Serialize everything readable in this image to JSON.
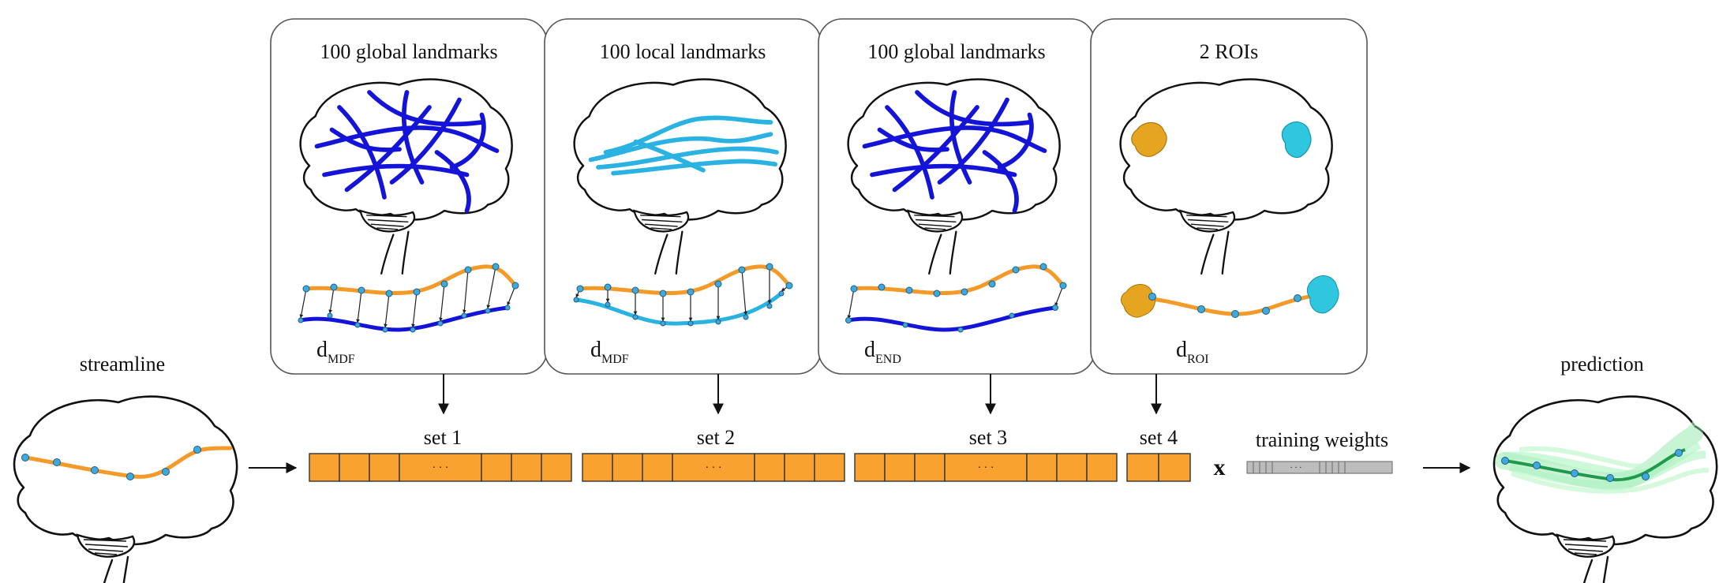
{
  "panels": [
    {
      "title": "100 global landmarks",
      "distance_base": "d",
      "distance_sub": "MDF",
      "set": "set 1",
      "landmark_color": "#1414d8",
      "kind": "global"
    },
    {
      "title": "100 local landmarks",
      "distance_base": "d",
      "distance_sub": "MDF",
      "set": "set 2",
      "landmark_color": "#2ab2e2",
      "kind": "local"
    },
    {
      "title": "100 global landmarks",
      "distance_base": "d",
      "distance_sub": "END",
      "set": "set 3",
      "landmark_color": "#1414d8",
      "kind": "end"
    },
    {
      "title": "2 ROIs",
      "distance_base": "d",
      "distance_sub": "ROI",
      "set": "set 4",
      "landmark_color": "#e6a521",
      "kind": "roi"
    }
  ],
  "left_label": "streamline",
  "right_label": "prediction",
  "multiply_symbol": "x",
  "weights_label": "training weights",
  "ellipsis": "· · ·",
  "colors": {
    "streamline": "#f49a28",
    "node": "#3fa9dd",
    "feature_cell": "#f9a230",
    "weight_cell": "#bdbdbd",
    "roi_a": "#e6a521",
    "roi_b": "#2fc6e0",
    "prediction_bundle": "#8ee6a8",
    "prediction_line": "#1f9a4c"
  }
}
